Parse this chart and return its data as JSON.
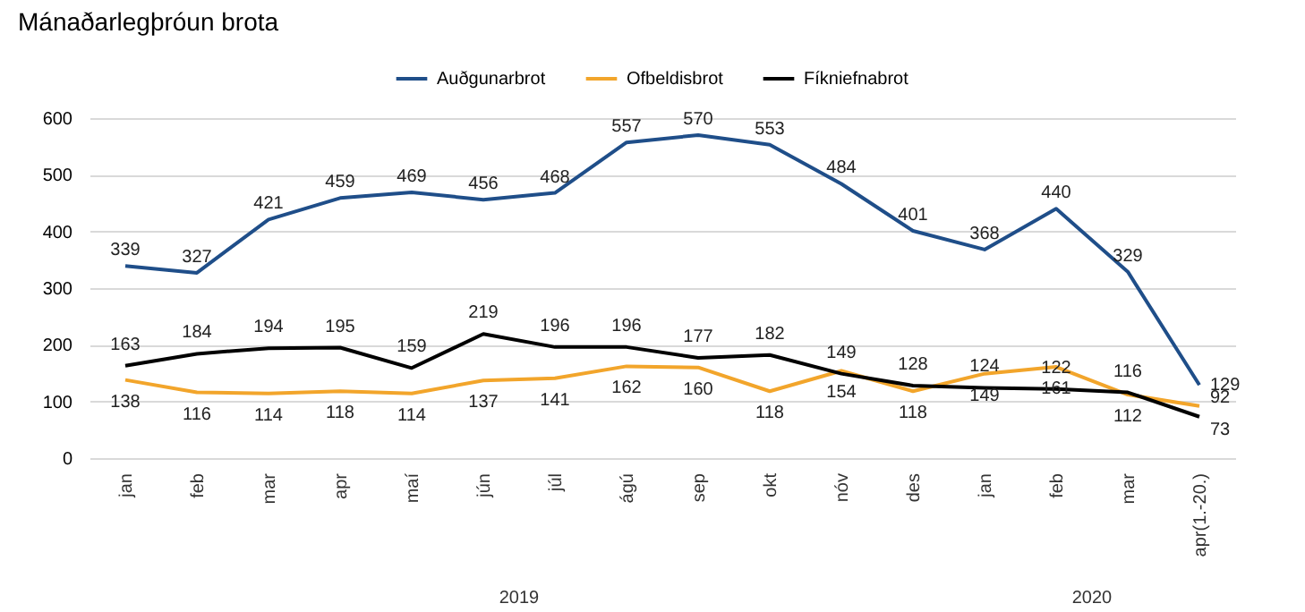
{
  "chart_data": {
    "type": "line",
    "title": "Mánaðarlegþróun brota",
    "categories": [
      "jan",
      "feb",
      "mar",
      "apr",
      "maí",
      "jún",
      "júl",
      "ágú",
      "sep",
      "okt",
      "nóv",
      "des",
      "jan",
      "feb",
      "mar",
      "apr(1.-20.)"
    ],
    "series": [
      {
        "name": "Auðgunarbrot",
        "color": "#1f4e89",
        "values": [
          339,
          327,
          421,
          459,
          469,
          456,
          468,
          557,
          570,
          553,
          484,
          401,
          368,
          440,
          329,
          129
        ]
      },
      {
        "name": "Ofbeldisbrot",
        "color": "#f2a52b",
        "values": [
          138,
          116,
          114,
          118,
          114,
          137,
          141,
          162,
          160,
          118,
          154,
          118,
          149,
          161,
          112,
          92
        ]
      },
      {
        "name": "Fíkniefnabrot",
        "color": "#000000",
        "values": [
          163,
          184,
          194,
          195,
          159,
          219,
          196,
          196,
          177,
          182,
          149,
          128,
          124,
          122,
          116,
          73
        ]
      }
    ],
    "ylim": [
      0,
      600
    ],
    "yticks": [
      0,
      100,
      200,
      300,
      400,
      500,
      600
    ],
    "grid": "y",
    "legend": "top",
    "data_labels": true,
    "marker": "none",
    "line_style": "solid",
    "annotations": [
      "2019",
      "2020"
    ]
  }
}
